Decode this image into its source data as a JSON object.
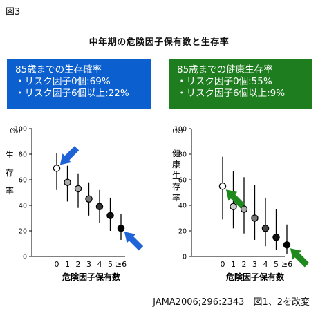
{
  "figure_label": "図3",
  "main_title": "中年期の危険因子保有数と生存率",
  "left_box": {
    "line1": "85歳までの生存確率",
    "line2": "・リスク因子0個:69%",
    "line3": "・リスク因子6個以上:22%",
    "color": "#0c5fcf"
  },
  "right_box": {
    "line1": "85歳までの健康生存率",
    "line2": "・リスク因子0個:55%",
    "line3": "・リスク因子6個以上:9%",
    "color": "#1e7d1e"
  },
  "citation": "JAMA2006;296:2343　図1、2を改変",
  "chart_data": [
    {
      "type": "scatter",
      "title": "",
      "ylabel": "生存率",
      "yunit": "(%)",
      "xlabel": "危険因子保有数",
      "ylim": [
        0,
        100
      ],
      "yticks": [
        0,
        20,
        40,
        60,
        80,
        100
      ],
      "categories": [
        "0",
        "1",
        "2",
        "3",
        "4",
        "5",
        "≥6"
      ],
      "values": [
        69,
        58,
        53,
        45,
        39,
        32,
        22
      ],
      "error_low": [
        52,
        43,
        38,
        32,
        26,
        20,
        13
      ],
      "error_high": [
        81,
        71,
        65,
        58,
        52,
        46,
        33
      ],
      "marker_fill": [
        "#ffffff",
        "#aaaaaa",
        "#aaaaaa",
        "#777777",
        "#333333",
        "#111111",
        "#000000"
      ],
      "highlight": [
        "0",
        "≥6"
      ],
      "arrow_color": "#1f64d6",
      "grid": false
    },
    {
      "type": "scatter",
      "title": "",
      "ylabel": "健康生存率",
      "yunit": "(%)",
      "xlabel": "危険因子保有数",
      "ylim": [
        0,
        100
      ],
      "yticks": [
        0,
        20,
        40,
        60,
        80,
        100
      ],
      "categories": [
        "0",
        "1",
        "2",
        "3",
        "4",
        "5",
        "≥6"
      ],
      "values": [
        55,
        39,
        37,
        30,
        22,
        15,
        9
      ],
      "error_low": [
        29,
        22,
        18,
        13,
        8,
        5,
        2
      ],
      "error_high": [
        78,
        67,
        62,
        56,
        46,
        37,
        25
      ],
      "marker_fill": [
        "#ffffff",
        "#cccccc",
        "#aaaaaa",
        "#777777",
        "#444444",
        "#111111",
        "#000000"
      ],
      "highlight": [
        "0",
        "≥6"
      ],
      "arrow_color": "#1e8a1e",
      "grid": false
    }
  ]
}
